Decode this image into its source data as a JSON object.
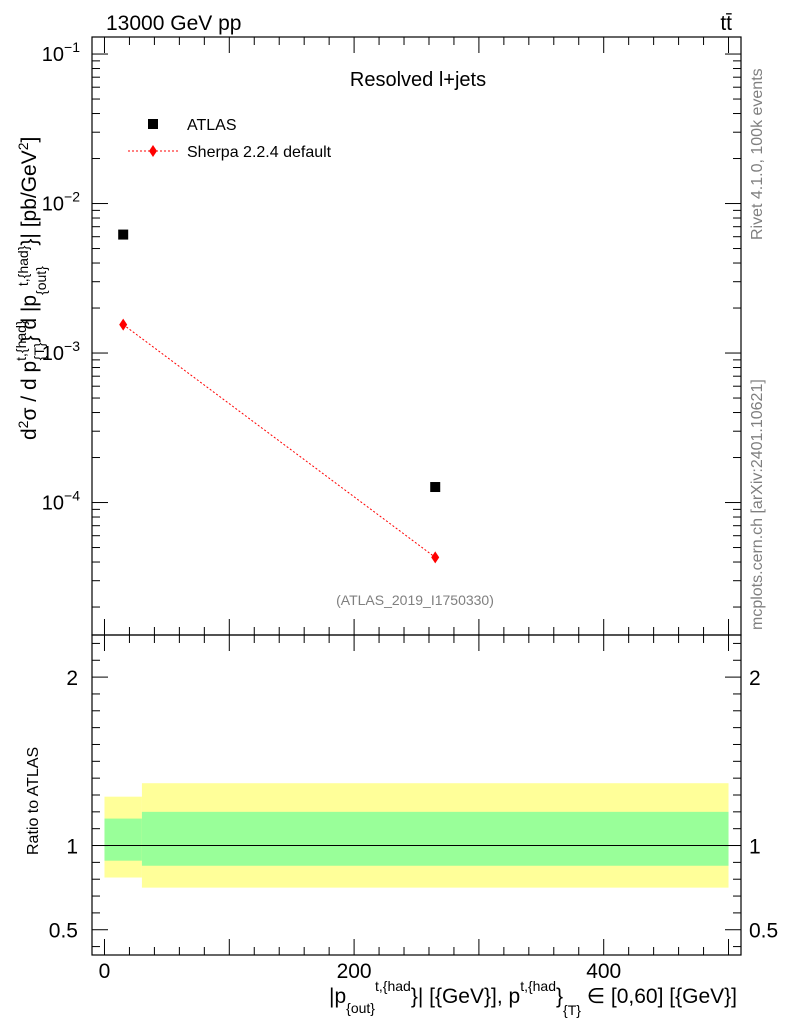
{
  "header": {
    "energy_label": "13000 GeV pp",
    "process_label": "tt̄"
  },
  "side_labels": {
    "rivet": "Rivet 4.1.0,  100k events",
    "mcplots": "mcplots.cern.ch [arXiv:2401.10621]"
  },
  "chart_data": [
    {
      "type": "scatter",
      "panel": "main",
      "title": "Resolved l+jets",
      "analysis_id": "(ATLAS_2019_I1750330)",
      "ylabel": {
        "d2": "d",
        "sup2": "2",
        "sigma_part": "σ / d p",
        "sup_t_had": "t,{had}",
        "sub_T": "{T}",
        "mid": "} d |p",
        "sub_out": "{out}",
        "sup_t_had2": "t,{had}",
        "tail": "}| [pb/GeV",
        "sup_tail": "2",
        "end": "]"
      },
      "yscale": "log",
      "ylim": [
        1.3e-05,
        0.13
      ],
      "xlim": [
        -10,
        510
      ],
      "y_tick_labels": [
        {
          "base": "10",
          "exp": "−1",
          "value": 0.1
        },
        {
          "base": "10",
          "exp": "−2",
          "value": 0.01
        },
        {
          "base": "10",
          "exp": "−3",
          "value": 0.001
        },
        {
          "base": "10",
          "exp": "−4",
          "value": 0.0001
        }
      ],
      "legend": [
        {
          "label": "ATLAS",
          "marker": "square",
          "color": "#000000"
        },
        {
          "label": "Sherpa 2.2.4 default",
          "marker": "diamond",
          "color": "#ff0000"
        }
      ],
      "series": [
        {
          "name": "ATLAS",
          "color": "#000000",
          "x": [
            15,
            265
          ],
          "values": [
            0.0062,
            0.000127
          ]
        },
        {
          "name": "Sherpa 2.2.4 default",
          "color": "#ff0000",
          "x": [
            15,
            265
          ],
          "values": [
            0.00155,
            4.3e-05
          ]
        }
      ]
    },
    {
      "type": "area",
      "panel": "ratio",
      "ylabel": "Ratio to ATLAS",
      "ylim": [
        0.35,
        2.25
      ],
      "xlim": [
        -10,
        510
      ],
      "y_ticks": [
        {
          "label": "2",
          "value": 2
        },
        {
          "label": "1",
          "value": 1
        },
        {
          "label": "0.5",
          "value": 0.5
        }
      ],
      "x_ticks": [
        {
          "label": "0",
          "value": 0
        },
        {
          "label": "200",
          "value": 200
        },
        {
          "label": "400",
          "value": 400
        }
      ],
      "bands": {
        "bins": [
          [
            0,
            30
          ],
          [
            30,
            500
          ]
        ],
        "yellow_low": [
          0.81,
          0.75
        ],
        "yellow_high": [
          1.29,
          1.37
        ],
        "green_low": [
          0.91,
          0.88
        ],
        "green_high": [
          1.16,
          1.2
        ],
        "yellow_color": "#ffff99",
        "green_color": "#99ff99"
      },
      "reference_line": 1
    }
  ],
  "xlabel": {
    "p1": "|p",
    "sub_out": "{out}",
    "p2": "}",
    "sup_t_had": "t,{had",
    "p3": "}| [{GeV}], p",
    "sup_t_had2": "t,{had",
    "p4": "}",
    "sub_T": "{T}",
    "p5": " ∈ [0,60] [{GeV}]"
  }
}
